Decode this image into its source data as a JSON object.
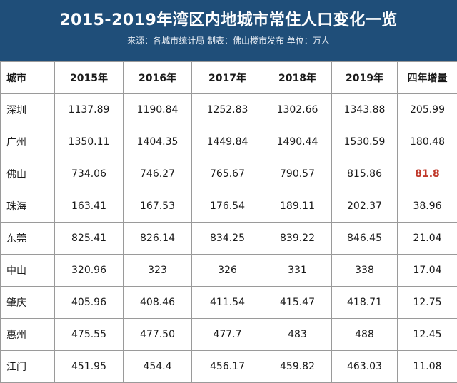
{
  "header": {
    "title": "2015-2019年湾区内地城市常住人口变化一览",
    "subtitle": "来源：各城市统计局 制表：佛山楼市发布 单位：万人"
  },
  "table": {
    "columns": [
      "城市",
      "2015年",
      "2016年",
      "2017年",
      "2018年",
      "2019年",
      "四年增量"
    ],
    "rows": [
      [
        "深圳",
        "1137.89",
        "1190.84",
        "1252.83",
        "1302.66",
        "1343.88",
        "205.99"
      ],
      [
        "广州",
        "1350.11",
        "1404.35",
        "1449.84",
        "1490.44",
        "1530.59",
        "180.48"
      ],
      [
        "佛山",
        "734.06",
        "746.27",
        "765.67",
        "790.57",
        "815.86",
        "81.8"
      ],
      [
        "珠海",
        "163.41",
        "167.53",
        "176.54",
        "189.11",
        "202.37",
        "38.96"
      ],
      [
        "东莞",
        "825.41",
        "826.14",
        "834.25",
        "839.22",
        "846.45",
        "21.04"
      ],
      [
        "中山",
        "320.96",
        "323",
        "326",
        "331",
        "338",
        "17.04"
      ],
      [
        "肇庆",
        "405.96",
        "408.46",
        "411.54",
        "415.47",
        "418.71",
        "12.75"
      ],
      [
        "惠州",
        "475.55",
        "477.50",
        "477.7",
        "483",
        "488",
        "12.45"
      ],
      [
        "江门",
        "451.95",
        "454.4",
        "456.17",
        "459.82",
        "463.03",
        "11.08"
      ]
    ],
    "highlight_color": "#c0392b"
  },
  "colors": {
    "header_bg": "#1f4e79",
    "border": "#9a9a9a"
  }
}
